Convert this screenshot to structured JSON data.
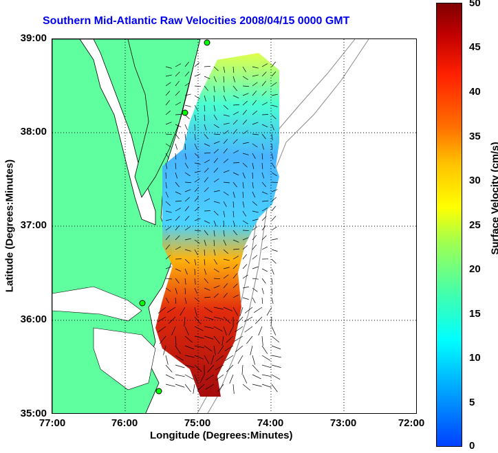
{
  "title": "Southern Mid-Atlantic Raw Velocities 2008/04/15 0000 GMT",
  "xlabel": "Longitude (Degrees:Minutes)",
  "ylabel": "Latitude (Degrees:Minutes)",
  "x_ticks": [
    "77:00",
    "76:00",
    "75:00",
    "74:00",
    "73:00",
    "72:00"
  ],
  "y_ticks": [
    "39:00",
    "38:00",
    "37:00",
    "36:00",
    "35:00"
  ],
  "colorbar": {
    "label": "Surface Velocity (cm/s)",
    "ticks": [
      "50",
      "45",
      "40",
      "35",
      "30",
      "25",
      "20",
      "15",
      "10",
      "5",
      "0"
    ],
    "range": [
      0,
      50
    ]
  },
  "map": {
    "lon_range": [
      -77,
      -72
    ],
    "lat_range": [
      35,
      39
    ],
    "land_color": "#5fff9f",
    "grid": "dotted",
    "stations": "green markers"
  }
}
